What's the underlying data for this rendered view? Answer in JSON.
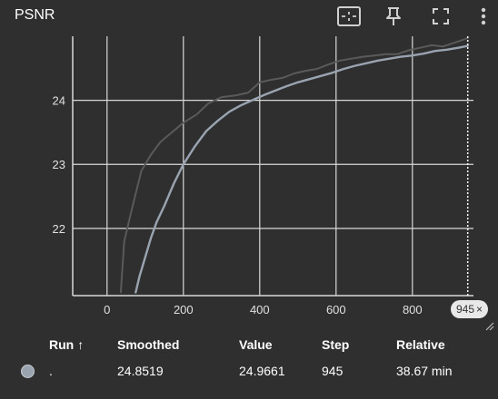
{
  "header": {
    "title": "PSNR",
    "icons": [
      "fit-domain-icon",
      "pin-icon",
      "fullscreen-icon",
      "more-vert-icon"
    ]
  },
  "step_pill": {
    "value": "945",
    "close_glyph": "×"
  },
  "legend": {
    "columns": {
      "run": "Run",
      "sort_arrow": "↑",
      "smoothed": "Smoothed",
      "value": "Value",
      "step": "Step",
      "relative": "Relative"
    },
    "rows": [
      {
        "run": ".",
        "smoothed": "24.8519",
        "value": "24.9661",
        "step": "945",
        "relative": "38.67 min",
        "color": "#9aa4b1"
      }
    ]
  },
  "chart_data": {
    "type": "line",
    "title": "",
    "xlabel": "",
    "ylabel": "",
    "xlim": [
      -90,
      960
    ],
    "ylim": [
      20.95,
      25.0
    ],
    "x_ticks": [
      0,
      200,
      400,
      600,
      800
    ],
    "y_ticks": [
      22,
      23,
      24
    ],
    "grid": true,
    "cursor_step": 945,
    "series": [
      {
        "role": "raw",
        "color": "#5a5a5a",
        "x": [
          36,
          45,
          65,
          90,
          115,
          140,
          170,
          200,
          235,
          265,
          300,
          340,
          370,
          400,
          430,
          460,
          490,
          520,
          550,
          580,
          610,
          640,
          670,
          700,
          730,
          760,
          790,
          820,
          850,
          880,
          910,
          945
        ],
        "y": [
          21.0,
          21.8,
          22.3,
          22.9,
          23.15,
          23.35,
          23.5,
          23.65,
          23.78,
          23.95,
          24.05,
          24.08,
          24.12,
          24.28,
          24.32,
          24.35,
          24.42,
          24.46,
          24.49,
          24.56,
          24.62,
          24.65,
          24.68,
          24.7,
          24.72,
          24.72,
          24.78,
          24.82,
          24.86,
          24.84,
          24.9,
          24.97
        ]
      },
      {
        "role": "smoothed",
        "color": "#9aa4b1",
        "x": [
          75,
          85,
          100,
          115,
          130,
          150,
          175,
          200,
          230,
          260,
          290,
          320,
          350,
          380,
          410,
          440,
          470,
          500,
          530,
          560,
          590,
          620,
          650,
          680,
          710,
          740,
          770,
          800,
          830,
          860,
          890,
          920,
          945
        ],
        "y": [
          21.0,
          21.25,
          21.55,
          21.85,
          22.1,
          22.35,
          22.7,
          23.0,
          23.28,
          23.52,
          23.68,
          23.82,
          23.92,
          24.0,
          24.08,
          24.15,
          24.22,
          24.28,
          24.33,
          24.38,
          24.43,
          24.49,
          24.54,
          24.58,
          24.62,
          24.65,
          24.68,
          24.7,
          24.73,
          24.77,
          24.79,
          24.82,
          24.85
        ]
      }
    ]
  }
}
